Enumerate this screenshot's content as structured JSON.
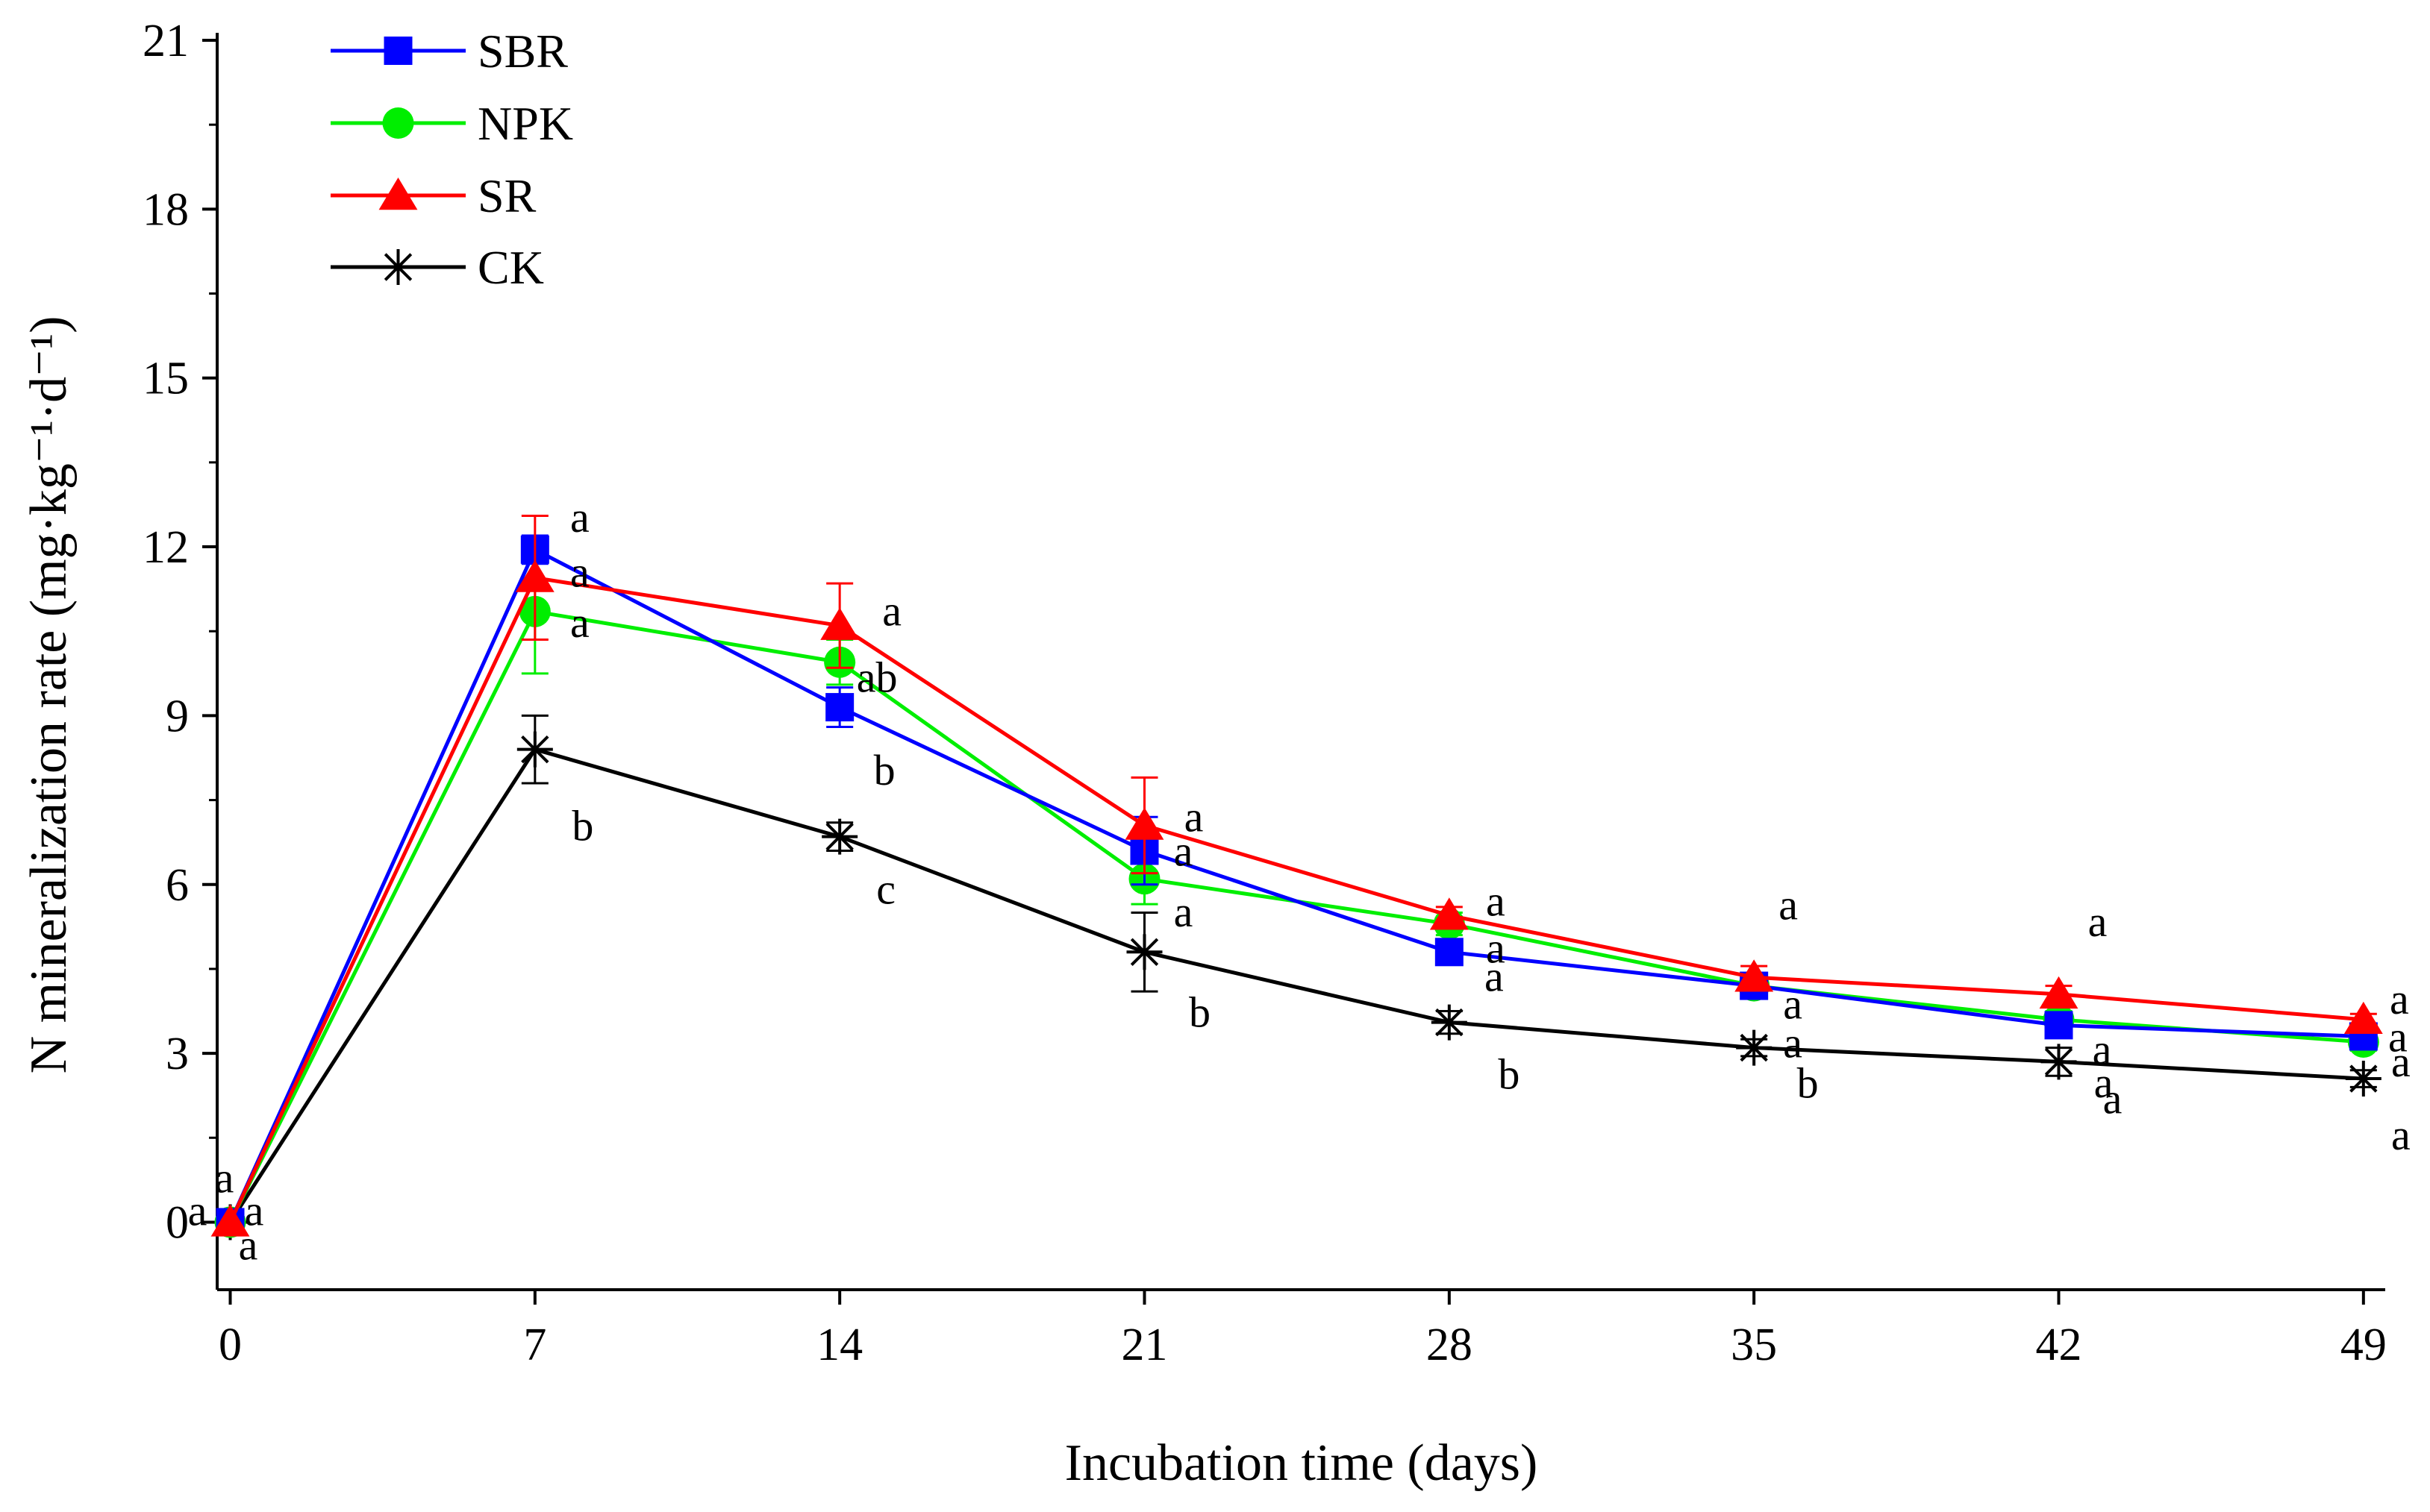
{
  "chart_data": {
    "type": "line",
    "title": "",
    "xlabel": "Incubation time (days)",
    "ylabel": "N mineralization rate (mg·kg⁻¹·d⁻¹)",
    "x": [
      0,
      7,
      14,
      21,
      28,
      35,
      42,
      49
    ],
    "xlim": [
      -0.3,
      49.5
    ],
    "ylim": [
      -1.2,
      21
    ],
    "xticks": [
      "0",
      "7",
      "14",
      "21",
      "28",
      "35",
      "42",
      "49"
    ],
    "yticks": [
      "0",
      "3",
      "6",
      "9",
      "12",
      "15",
      "18",
      "21"
    ],
    "grid": false,
    "legend_position": "top-left",
    "series": [
      {
        "name": "SBR",
        "color": "#0000ff",
        "marker": "square",
        "values": [
          0.0,
          11.95,
          9.15,
          6.6,
          4.8,
          4.2,
          3.5,
          3.3
        ],
        "errors": [
          0.0,
          0.25,
          0.35,
          0.6,
          0.2,
          0.15,
          0.2,
          0.15
        ],
        "labels": [
          "a",
          "a",
          "b",
          "a",
          "a",
          "a",
          "a",
          "a"
        ]
      },
      {
        "name": "NPK",
        "color": "#00ee00",
        "marker": "circle",
        "values": [
          0.0,
          10.85,
          9.95,
          6.1,
          5.3,
          4.2,
          3.6,
          3.2
        ],
        "errors": [
          0.0,
          1.1,
          0.4,
          0.45,
          0.2,
          0.15,
          0.15,
          0.15
        ],
        "labels": [
          "a",
          "a",
          "ab",
          "a",
          "a",
          "a",
          "a",
          "a"
        ]
      },
      {
        "name": "SR",
        "color": "#ff0000",
        "marker": "triangle",
        "values": [
          0.0,
          11.45,
          10.6,
          7.05,
          5.45,
          4.35,
          4.05,
          3.6
        ],
        "errors": [
          0.0,
          1.1,
          0.75,
          0.85,
          0.15,
          0.2,
          0.15,
          0.1
        ],
        "labels": [
          "a",
          "a",
          "a",
          "a",
          "a",
          "a",
          "a",
          "a"
        ]
      },
      {
        "name": "CK",
        "color": "#000000",
        "marker": "asterisk",
        "values": [
          0.0,
          8.4,
          6.85,
          4.8,
          3.55,
          3.1,
          2.85,
          2.55
        ],
        "errors": [
          0.0,
          0.6,
          0.25,
          0.7,
          0.2,
          0.15,
          0.25,
          0.15
        ],
        "labels": [
          "a",
          "b",
          "c",
          "b",
          "b",
          "b",
          "a",
          "a"
        ]
      }
    ]
  }
}
